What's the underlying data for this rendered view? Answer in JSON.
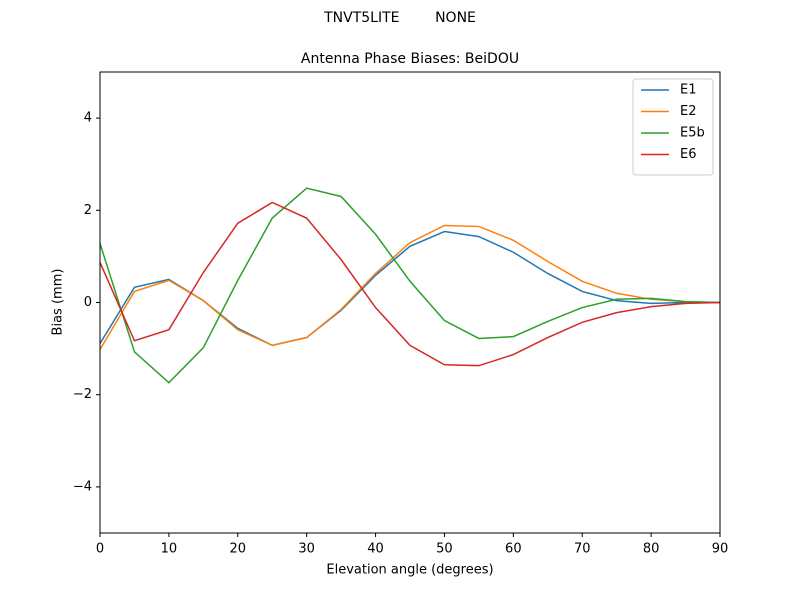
{
  "chart_data": {
    "type": "line",
    "suptitle": "TNVT5LITE        NONE",
    "title": "Antenna Phase Biases: BeiDOU",
    "x_label": "Elevation angle (degrees)",
    "y_label": "Bias (mm)",
    "x": [
      0,
      5,
      10,
      15,
      20,
      25,
      30,
      35,
      40,
      45,
      50,
      55,
      60,
      65,
      70,
      75,
      80,
      85,
      90
    ],
    "series": [
      {
        "name": "E1",
        "color": "#1f77b4",
        "values": [
          -0.89,
          0.33,
          0.5,
          0.04,
          -0.56,
          -0.93,
          -0.76,
          -0.17,
          0.59,
          1.22,
          1.54,
          1.43,
          1.09,
          0.63,
          0.24,
          0.04,
          -0.02,
          0,
          0
        ]
      },
      {
        "name": "E2",
        "color": "#ff7f0e",
        "values": [
          -1.02,
          0.24,
          0.48,
          0.04,
          -0.59,
          -0.93,
          -0.76,
          -0.15,
          0.63,
          1.3,
          1.67,
          1.65,
          1.35,
          0.89,
          0.46,
          0.2,
          0.07,
          0.02,
          0
        ]
      },
      {
        "name": "E5b",
        "color": "#2ca02c",
        "values": [
          1.28,
          -1.07,
          -1.74,
          -0.98,
          0.48,
          1.83,
          2.48,
          2.3,
          1.48,
          0.46,
          -0.39,
          -0.78,
          -0.74,
          -0.41,
          -0.11,
          0.07,
          0.09,
          0.02,
          0
        ]
      },
      {
        "name": "E6",
        "color": "#d62728",
        "values": [
          0.87,
          -0.83,
          -0.59,
          0.65,
          1.72,
          2.17,
          1.83,
          0.93,
          -0.11,
          -0.93,
          -1.35,
          -1.37,
          -1.13,
          -0.76,
          -0.43,
          -0.22,
          -0.09,
          -0.02,
          0
        ]
      }
    ],
    "xlim": [
      0,
      90
    ],
    "xticks": [
      0,
      10,
      20,
      30,
      40,
      50,
      60,
      70,
      80,
      90
    ],
    "ylim": [
      -5,
      5
    ],
    "yticks": [
      {
        "value": -4,
        "label": "−4"
      },
      {
        "value": -2,
        "label": "−2"
      },
      0,
      2,
      4
    ],
    "legend": "upper right"
  }
}
